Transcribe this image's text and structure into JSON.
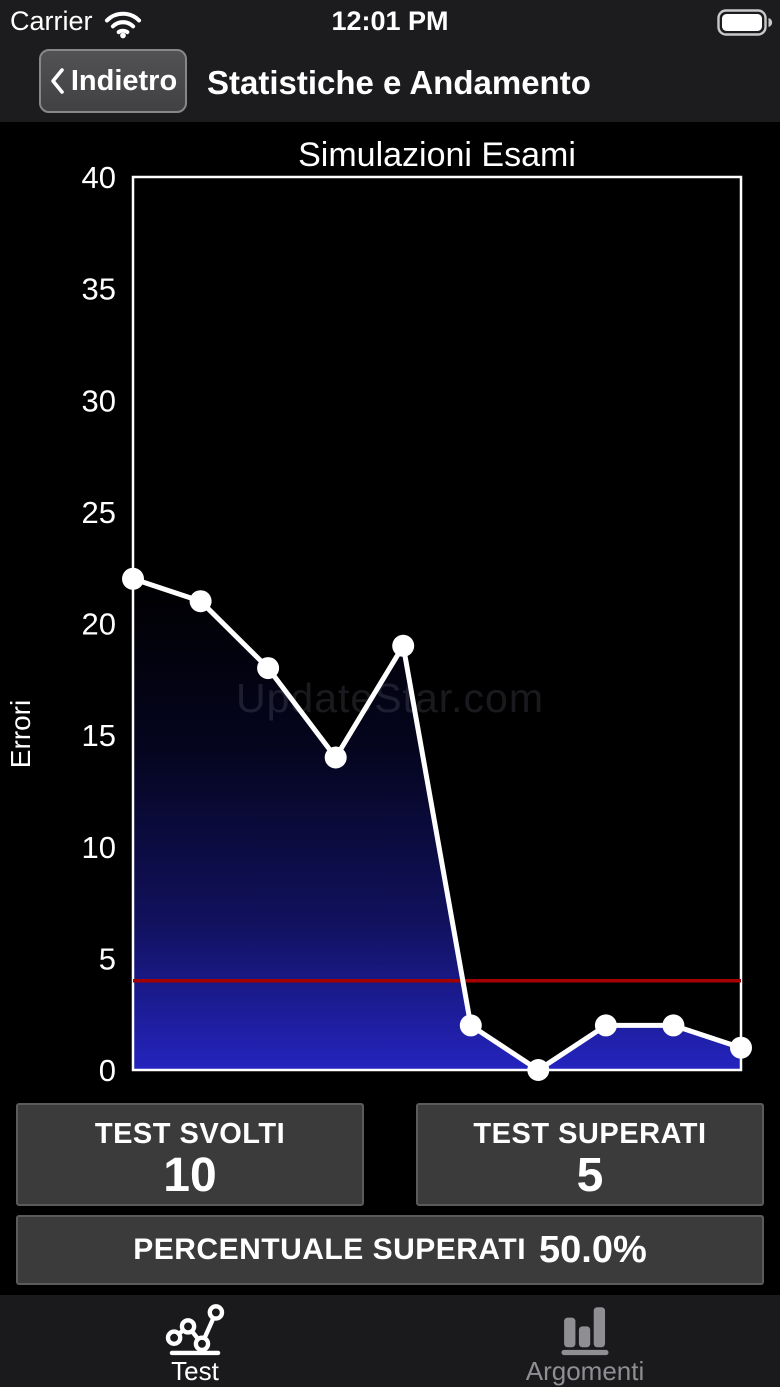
{
  "status_bar": {
    "carrier": "Carrier",
    "time": "12:01 PM",
    "wifi_icon": "wifi",
    "battery_icon": "battery-full"
  },
  "nav_bar": {
    "back_label": "Indietro",
    "title": "Statistiche e Andamento"
  },
  "chart_data": {
    "type": "line",
    "title": "Simulazioni Esami",
    "ylabel": "Errori",
    "xlabel": "",
    "x": [
      1,
      2,
      3,
      4,
      5,
      6,
      7,
      8,
      9,
      10
    ],
    "values": [
      22,
      21,
      18,
      14,
      19,
      2,
      0,
      2,
      2,
      1
    ],
    "ylim": [
      0,
      40
    ],
    "yticks": [
      0,
      5,
      10,
      15,
      20,
      25,
      30,
      35,
      40
    ],
    "grid": false,
    "legend": false,
    "line_color": "#ffffff",
    "marker": "circle",
    "marker_color": "#ffffff",
    "threshold_line": {
      "value": 4,
      "color": "#a50000"
    },
    "area_gradient_stops": [
      {
        "offset": "0%",
        "color": "#000000"
      },
      {
        "offset": "35%",
        "color": "#05051f"
      },
      {
        "offset": "70%",
        "color": "#11115e"
      },
      {
        "offset": "100%",
        "color": "#2424bf"
      }
    ]
  },
  "watermark": "UpdateStar.com",
  "stats": {
    "tests_taken": {
      "label": "TEST SVOLTI",
      "value": "10"
    },
    "tests_passed": {
      "label": "TEST SUPERATI",
      "value": "5"
    },
    "percent_passed": {
      "label": "PERCENTUALE SUPERATI",
      "value": "50.0%"
    }
  },
  "tab_bar": {
    "tabs": [
      {
        "label": "Test",
        "icon": "line-chart-icon",
        "active": true
      },
      {
        "label": "Argomenti",
        "icon": "bar-chart-icon",
        "active": false
      }
    ]
  },
  "colors": {
    "top_bar_bg": "#1c1c1e",
    "content_bg": "#000000",
    "tab_bar_bg": "#1a1a1c",
    "box_bg": "#3b3b3b",
    "box_border": "#5b5b5b",
    "active_tab": "#ffffff",
    "inactive_tab": "#8e8e93",
    "area_fill_blue": "#2424bf",
    "threshold_red": "#a50000",
    "line_white": "#ffffff"
  }
}
